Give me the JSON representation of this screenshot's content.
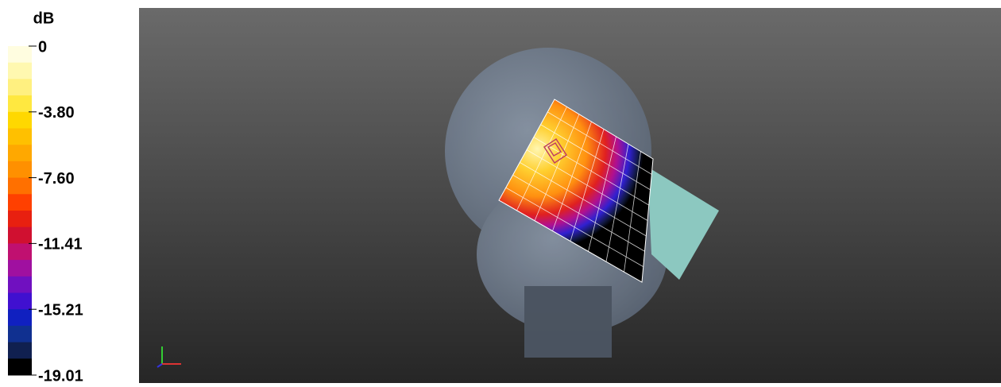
{
  "colorbar": {
    "unit": "dB",
    "ticks": [
      "0",
      "-3.80",
      "-7.60",
      "-11.41",
      "-15.21",
      "-19.01"
    ]
  }
}
